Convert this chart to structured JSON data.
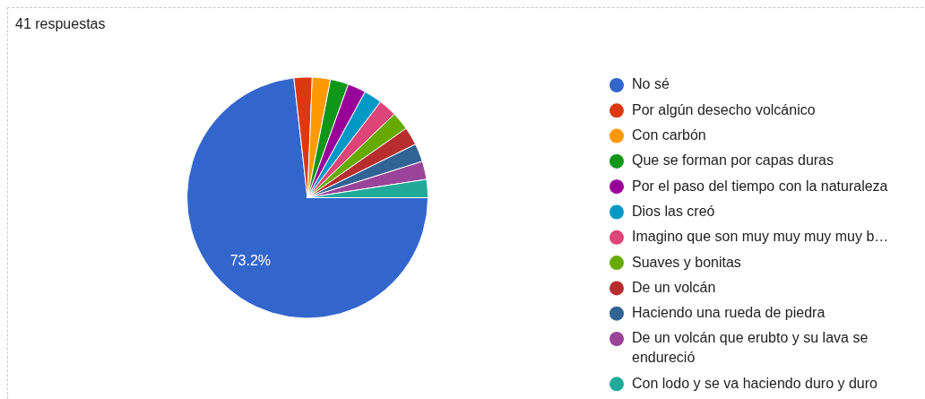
{
  "chart_data": {
    "type": "pie",
    "title": "41 respuestas",
    "categories": [
      "No sé",
      "Por algún desecho volcánico",
      "Con carbón",
      "Que se forman por capas duras",
      "Por el paso del tiempo con la naturaleza",
      "Dios las creó",
      "Imagino que son muy muy muy muy b…",
      "Suaves y bonitas",
      "De un volcán",
      "Haciendo una rueda de piedra",
      "De un volcán que erubto y su lava se endureció",
      "Con lodo y se va haciendo duro y duro"
    ],
    "values": [
      73.2,
      2.436,
      2.436,
      2.436,
      2.436,
      2.436,
      2.436,
      2.436,
      2.436,
      2.436,
      2.436,
      2.436
    ],
    "colors": [
      "#3366cc",
      "#dc3912",
      "#ff9900",
      "#109618",
      "#990099",
      "#0099c6",
      "#dd4477",
      "#66aa00",
      "#b82e2e",
      "#316395",
      "#994499",
      "#22aa99"
    ],
    "value_labels": [
      "73.2%",
      null,
      null,
      null,
      null,
      null,
      null,
      null,
      null,
      null,
      null,
      null
    ],
    "legend": "right"
  }
}
